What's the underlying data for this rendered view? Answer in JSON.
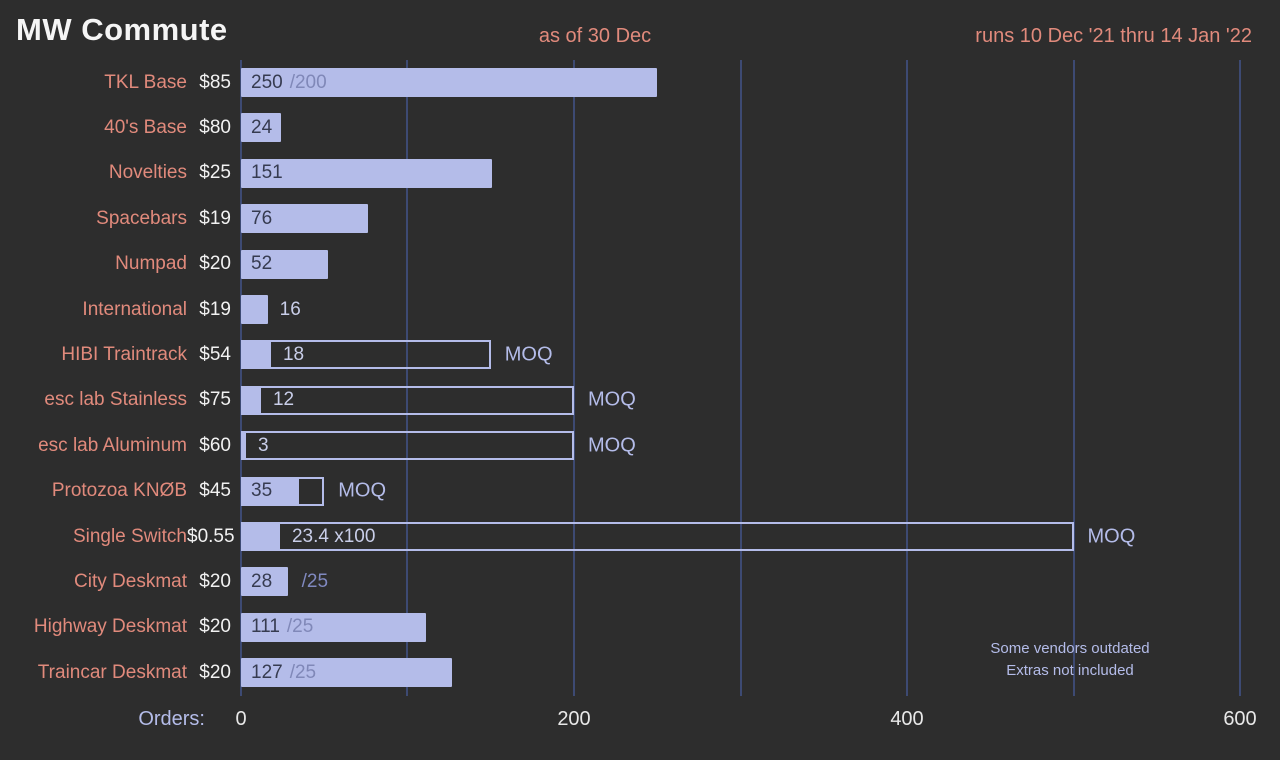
{
  "header": {
    "title": "MW Commute",
    "as_of": "as of 30 Dec",
    "runs": "runs 10 Dec '21 thru 14 Jan '22"
  },
  "axis": {
    "label": "Orders:",
    "ticks": [
      0,
      200,
      400,
      600
    ],
    "max": 600,
    "gridline_step": 100
  },
  "annotation": {
    "line1": "Some vendors outdated",
    "line2": "Extras not included"
  },
  "colors": {
    "background": "#2d2d2d",
    "bar_fill": "#b4bce9",
    "bar_value_text": "#363b50",
    "faded_cap_text": "#8088b8",
    "row_label": "#e18a7c",
    "price_text": "#f2f2f2",
    "gridline": "#3d4a73",
    "moq_text": "#b4bce9",
    "outside_value_text": "#c9cee9"
  },
  "chart_data": {
    "type": "bar",
    "orientation": "horizontal",
    "title": "MW Commute",
    "xlabel": "Orders",
    "xlim": [
      0,
      600
    ],
    "grid": true,
    "moq_label": "MOQ",
    "rows": [
      {
        "label": "TKL Base",
        "price": "$85",
        "value": 250,
        "display": "250",
        "value_inside": true,
        "cap": "/200",
        "cap_inside": true
      },
      {
        "label": "40's Base",
        "price": "$80",
        "value": 24,
        "display": "24",
        "value_inside": true
      },
      {
        "label": "Novelties",
        "price": "$25",
        "value": 151,
        "display": "151",
        "value_inside": true
      },
      {
        "label": "Spacebars",
        "price": "$19",
        "value": 76,
        "display": "76",
        "value_inside": true
      },
      {
        "label": "Numpad",
        "price": "$20",
        "value": 52,
        "display": "52",
        "value_inside": true
      },
      {
        "label": "International",
        "price": "$19",
        "value": 16,
        "display": "16",
        "value_inside": false
      },
      {
        "label": "HIBI Traintrack",
        "price": "$54",
        "value": 18,
        "display": "18",
        "value_inside": false,
        "moq": 150
      },
      {
        "label": "esc lab Stainless",
        "price": "$75",
        "value": 12,
        "display": "12",
        "value_inside": false,
        "moq": 200
      },
      {
        "label": "esc lab Aluminum",
        "price": "$60",
        "value": 3,
        "display": "3",
        "value_inside": false,
        "moq": 200
      },
      {
        "label": "Protozoa KNØB",
        "price": "$45",
        "value": 35,
        "display": "35",
        "value_inside": true,
        "moq": 50
      },
      {
        "label": "Single Switch",
        "price": "$0.55",
        "value": 23.4,
        "display": "23.4 x100",
        "value_inside": false,
        "moq": 500
      },
      {
        "label": "City Deskmat",
        "price": "$20",
        "value": 28,
        "display": "28",
        "value_inside": true,
        "cap": "/25",
        "cap_inside": false
      },
      {
        "label": "Highway Deskmat",
        "price": "$20",
        "value": 111,
        "display": "111",
        "value_inside": true,
        "cap": "/25",
        "cap_inside": true
      },
      {
        "label": "Traincar Deskmat",
        "price": "$20",
        "value": 127,
        "display": "127",
        "value_inside": true,
        "cap": "/25",
        "cap_inside": true
      }
    ]
  }
}
